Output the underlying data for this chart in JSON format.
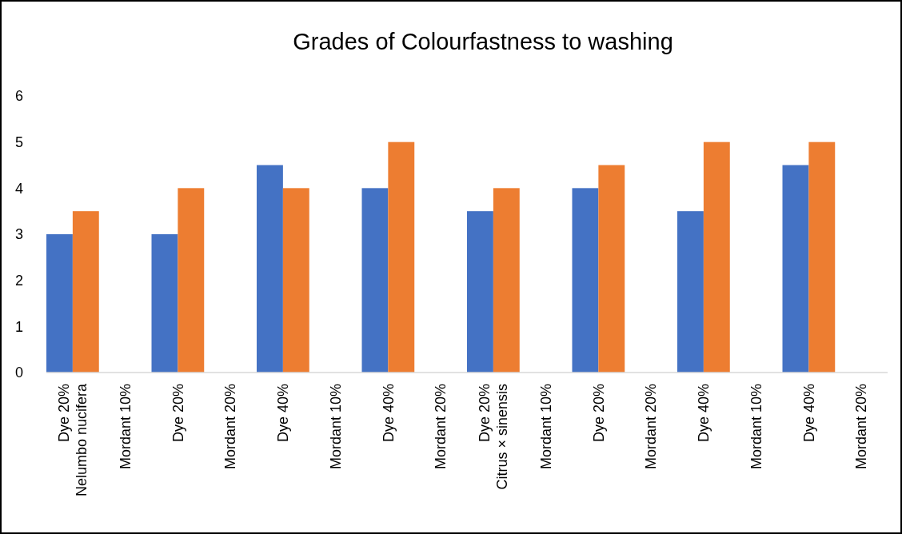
{
  "chart_data": {
    "type": "bar",
    "title": "Grades of Colourfastness to washing",
    "categories": [
      "Dye 20%\nNelumbo nucifera",
      "Mordant 10%",
      "Dye 20%",
      "Mordant 20%",
      "Dye 40%",
      "Mordant 10%",
      "Dye 40%",
      "Mordant 20%",
      "Dye 20%\nCitrus × sinensis",
      "Mordant 10%",
      "Dye 20%",
      "Mordant 20%",
      "Dye 40%",
      "Mordant 10%",
      "Dye 40%",
      "Mordant 20%"
    ],
    "series": [
      {
        "color": "#4472c4",
        "values": [
          3,
          null,
          3,
          null,
          4.5,
          null,
          4,
          null,
          3.5,
          null,
          4,
          null,
          3.5,
          null,
          4.5,
          null
        ]
      },
      {
        "color": "#ed7d31",
        "values": [
          3.5,
          null,
          4,
          null,
          4,
          null,
          5,
          null,
          4,
          null,
          4.5,
          null,
          5,
          null,
          5,
          null
        ]
      }
    ],
    "ylim": [
      0,
      6
    ],
    "yticks": [
      0,
      1,
      2,
      3,
      4,
      5,
      6
    ]
  }
}
